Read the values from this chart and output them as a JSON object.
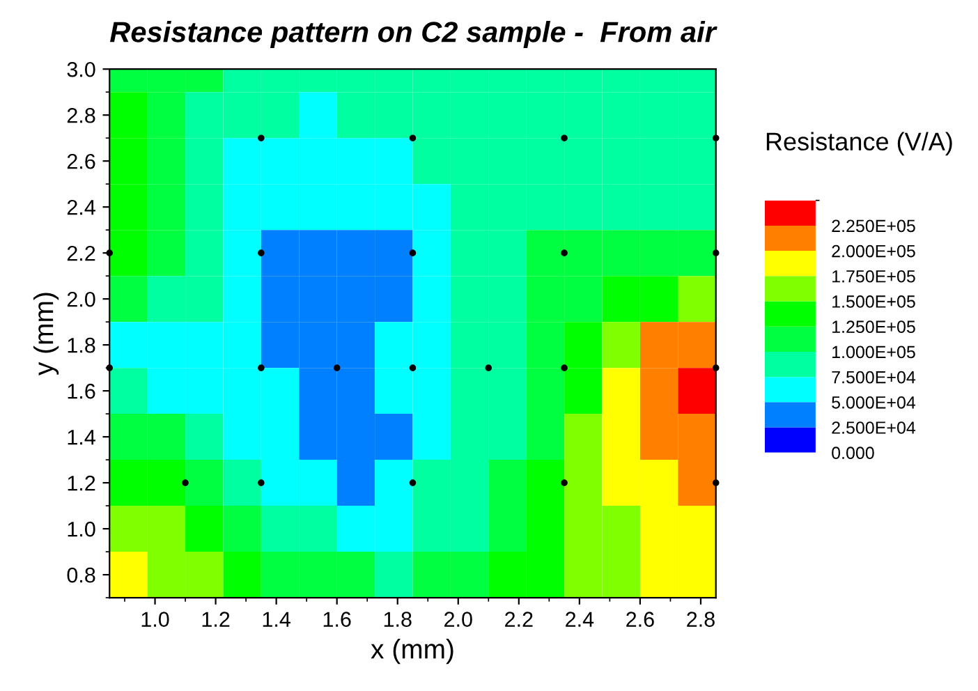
{
  "chart_data": {
    "type": "heatmap",
    "title": "Resistance pattern on C2 sample -  From air",
    "xlabel": "x (mm)",
    "ylabel": "y (mm)",
    "clabel": "Resistance (V/A)",
    "x": [
      0.9125,
      1.0375,
      1.1625,
      1.2875,
      1.4125,
      1.5375,
      1.6625,
      1.7875,
      1.9125,
      2.0375,
      2.1625,
      2.2875,
      2.4125,
      2.5375,
      2.6625,
      2.7875
    ],
    "y": [
      3.0,
      2.8,
      2.6,
      2.4,
      2.2,
      2.0,
      1.8,
      1.6,
      1.4,
      1.2,
      1.0,
      0.8
    ],
    "cells": [
      [
        112500,
        112500,
        112500,
        87500,
        87500,
        87500,
        87500,
        87500,
        87500,
        87500,
        87500,
        87500,
        87500,
        87500,
        87500,
        87500
      ],
      [
        137500,
        112500,
        87500,
        87500,
        87500,
        62500,
        87500,
        87500,
        87500,
        87500,
        87500,
        87500,
        87500,
        87500,
        87500,
        87500
      ],
      [
        137500,
        112500,
        87500,
        62500,
        62500,
        62500,
        62500,
        62500,
        87500,
        87500,
        87500,
        87500,
        87500,
        87500,
        87500,
        87500
      ],
      [
        137500,
        112500,
        87500,
        62500,
        62500,
        62500,
        62500,
        62500,
        62500,
        87500,
        87500,
        87500,
        87500,
        87500,
        87500,
        87500
      ],
      [
        137500,
        112500,
        87500,
        62500,
        37500,
        37500,
        37500,
        37500,
        62500,
        87500,
        87500,
        112500,
        112500,
        112500,
        112500,
        112500
      ],
      [
        112500,
        87500,
        87500,
        62500,
        37500,
        37500,
        37500,
        37500,
        62500,
        87500,
        87500,
        112500,
        112500,
        137500,
        137500,
        162500
      ],
      [
        62500,
        62500,
        62500,
        62500,
        37500,
        37500,
        37500,
        62500,
        62500,
        87500,
        87500,
        112500,
        137500,
        162500,
        212500,
        212500
      ],
      [
        87500,
        62500,
        62500,
        62500,
        62500,
        37500,
        37500,
        62500,
        62500,
        87500,
        87500,
        112500,
        137500,
        187500,
        212500,
        237500
      ],
      [
        112500,
        112500,
        87500,
        62500,
        62500,
        37500,
        37500,
        37500,
        62500,
        87500,
        87500,
        112500,
        162500,
        187500,
        212500,
        212500
      ],
      [
        137500,
        137500,
        112500,
        87500,
        62500,
        62500,
        37500,
        62500,
        87500,
        87500,
        112500,
        137500,
        162500,
        187500,
        187500,
        212500
      ],
      [
        162500,
        162500,
        137500,
        112500,
        87500,
        87500,
        62500,
        62500,
        87500,
        87500,
        112500,
        137500,
        162500,
        162500,
        187500,
        187500
      ],
      [
        187500,
        162500,
        162500,
        137500,
        112500,
        112500,
        112500,
        87500,
        112500,
        112500,
        137500,
        137500,
        162500,
        162500,
        187500,
        187500
      ]
    ],
    "colors": [
      "#0000ff",
      "#0080ff",
      "#00ffff",
      "#00ffa0",
      "#00ff40",
      "#00ff00",
      "#80ff00",
      "#ffff00",
      "#ff8000",
      "#ff0000"
    ],
    "clim": [
      0,
      250000
    ],
    "cticks": [
      {
        "value": 0,
        "label": "0.000"
      },
      {
        "value": 25000,
        "label": "2.500E+04"
      },
      {
        "value": 50000,
        "label": "5.000E+04"
      },
      {
        "value": 75000,
        "label": "7.500E+04"
      },
      {
        "value": 100000,
        "label": "1.000E+05"
      },
      {
        "value": 125000,
        "label": "1.250E+05"
      },
      {
        "value": 150000,
        "label": "1.500E+05"
      },
      {
        "value": 175000,
        "label": "1.750E+05"
      },
      {
        "value": 200000,
        "label": "2.000E+05"
      },
      {
        "value": 225000,
        "label": "2.250E+05"
      }
    ],
    "series": [
      {
        "type": "scatter",
        "color": "#000000",
        "marker": "circle",
        "x": [
          1.35,
          1.85,
          2.35,
          2.85,
          0.85,
          1.35,
          1.85,
          2.35,
          2.85,
          0.85,
          1.35,
          1.6,
          1.85,
          2.1,
          2.35,
          2.85,
          1.1,
          1.35,
          1.85,
          2.35,
          2.85
        ],
        "values": [
          2.7,
          2.7,
          2.7,
          2.7,
          2.2,
          2.2,
          2.2,
          2.2,
          2.2,
          1.7,
          1.7,
          1.7,
          1.7,
          1.7,
          1.7,
          1.7,
          1.2,
          1.2,
          1.2,
          1.2,
          1.2
        ]
      }
    ],
    "xlim": [
      0.85,
      2.85
    ],
    "ylim": [
      0.7,
      3.0
    ],
    "xticks": [
      {
        "value": 1.0,
        "label": "1.0"
      },
      1.2,
      1.4,
      1.6,
      1.8,
      {
        "value": 2.0,
        "label": "2.0"
      },
      2.2,
      2.4,
      2.6,
      2.8
    ],
    "yticks": [
      0.8,
      {
        "value": 1.0,
        "label": "1.0"
      },
      1.2,
      1.4,
      1.6,
      1.8,
      {
        "value": 2.0,
        "label": "2.0"
      },
      2.2,
      2.4,
      2.6,
      2.8,
      {
        "value": 3.0,
        "label": "3.0"
      }
    ],
    "grid": false
  }
}
